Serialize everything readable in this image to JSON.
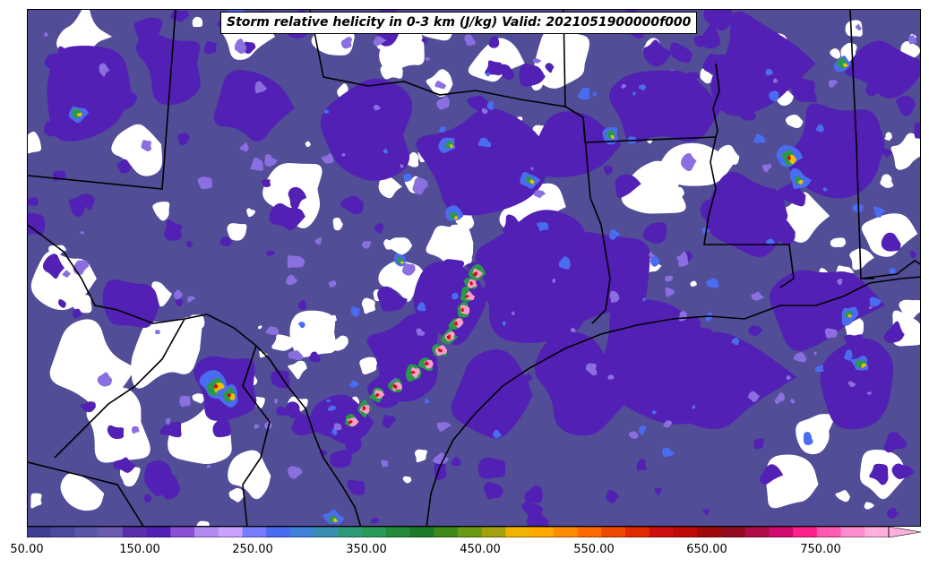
{
  "title": "Storm relative helicity in 0-3 km (J/kg) Valid: 2021051900000f000",
  "colorbar": {
    "ticks": [
      "50.00",
      "150.00",
      "250.00",
      "350.00",
      "450.00",
      "550.00",
      "650.00",
      "750.00"
    ],
    "colors": [
      "#3f3d94",
      "#4c4aa0",
      "#5a57ab",
      "#6a5db0",
      "#5a2fae",
      "#5220b4",
      "#8b4fd6",
      "#b08af0",
      "#c9a2ff",
      "#7a7cff",
      "#4a6cf0",
      "#3f82d8",
      "#3a8fb0",
      "#2f9a7a",
      "#2a9a5a",
      "#248a3a",
      "#1d7a28",
      "#3f8a1a",
      "#6a9a14",
      "#a4a00e",
      "#f0b400",
      "#ffa800",
      "#ff8c00",
      "#ff6a00",
      "#f04a00",
      "#e02a00",
      "#d01010",
      "#c00a0a",
      "#a00a0a",
      "#900c1e",
      "#b00c48",
      "#d00c70",
      "#ff1f8f",
      "#ff5ab0",
      "#ff8ccc",
      "#ffb0dc"
    ],
    "extend": "max"
  },
  "palette": {
    "base": "#514d97",
    "purple": "#5220b4",
    "light_purple": "#8b6fe0",
    "blue": "#4a6cf0",
    "green": "#2a9a4a",
    "yellow": "#f0c000",
    "red": "#d01010",
    "pink": "#ff9ccc",
    "border": "#000000",
    "empty": "#ffffff"
  }
}
